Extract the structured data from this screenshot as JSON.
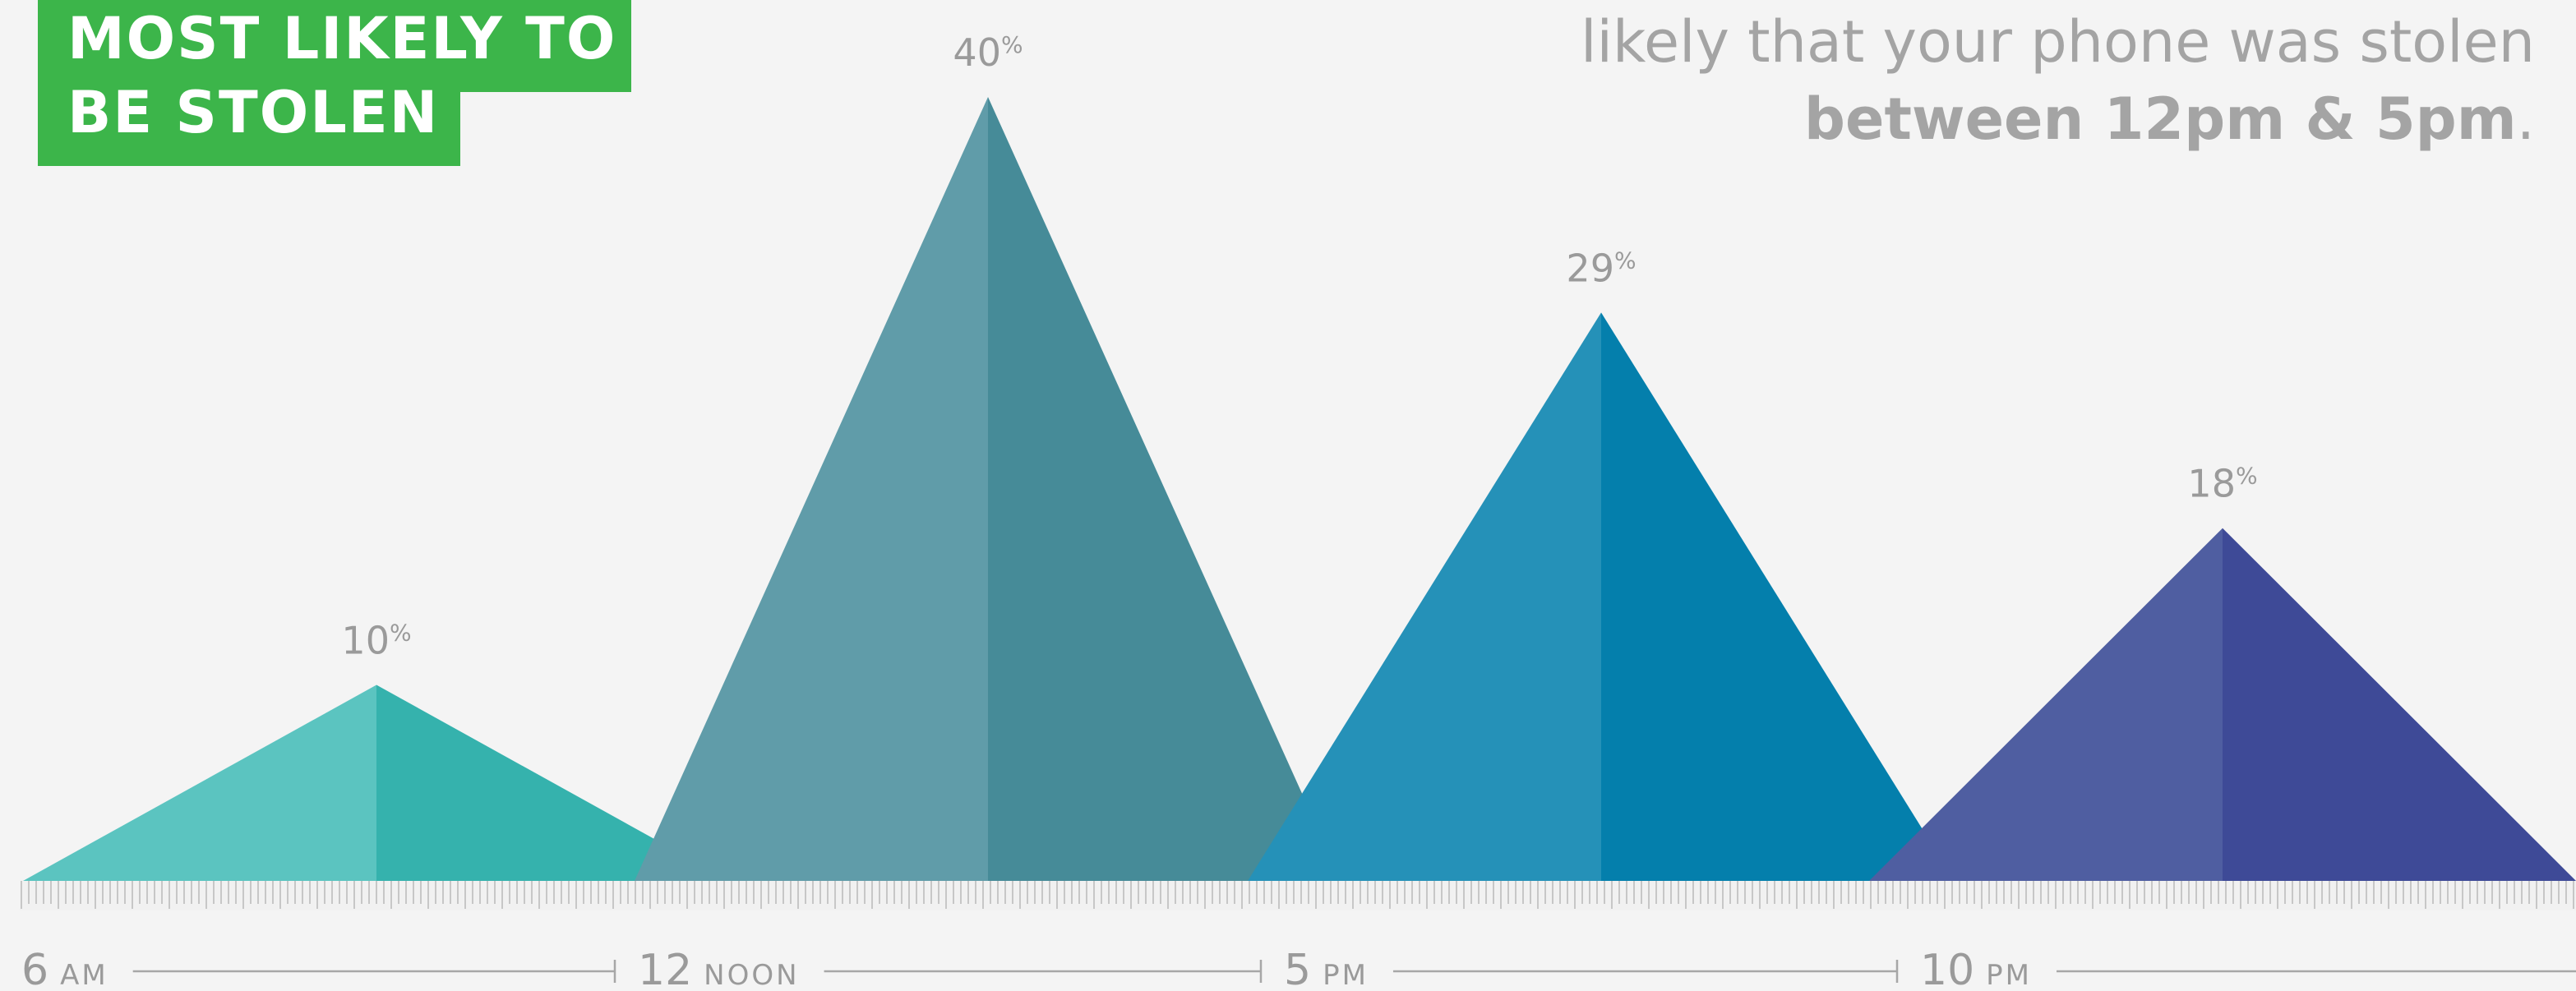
{
  "header": {
    "title_line_1": "MOST LIKELY TO",
    "title_line_2": "BE STOLEN",
    "title_color": "#3cb54a"
  },
  "caption": {
    "line_1": "likely that your phone was stolen",
    "line_2_bold": "between 12pm & 5pm",
    "line_2_end": "."
  },
  "chart_data": {
    "type": "area",
    "unit": "%",
    "series": [
      {
        "label": "10",
        "value": 10,
        "color_left": "#5bc4c0",
        "color_right": "#35b2ad"
      },
      {
        "label": "40",
        "value": 40,
        "color_left": "#609ca9",
        "color_right": "#468b98"
      },
      {
        "label": "29",
        "value": 29,
        "color_left": "#2591b8",
        "color_right": "#047fac"
      },
      {
        "label": "18",
        "value": 18,
        "color_left": "#4f5ea1",
        "color_right": "#3e4a97"
      }
    ],
    "x_ticks": [
      {
        "num": "6",
        "suffix": "AM"
      },
      {
        "num": "12",
        "suffix": "NOON"
      },
      {
        "num": "5",
        "suffix": "PM"
      },
      {
        "num": "10",
        "suffix": "PM"
      }
    ],
    "grid": false,
    "legend": "none"
  }
}
